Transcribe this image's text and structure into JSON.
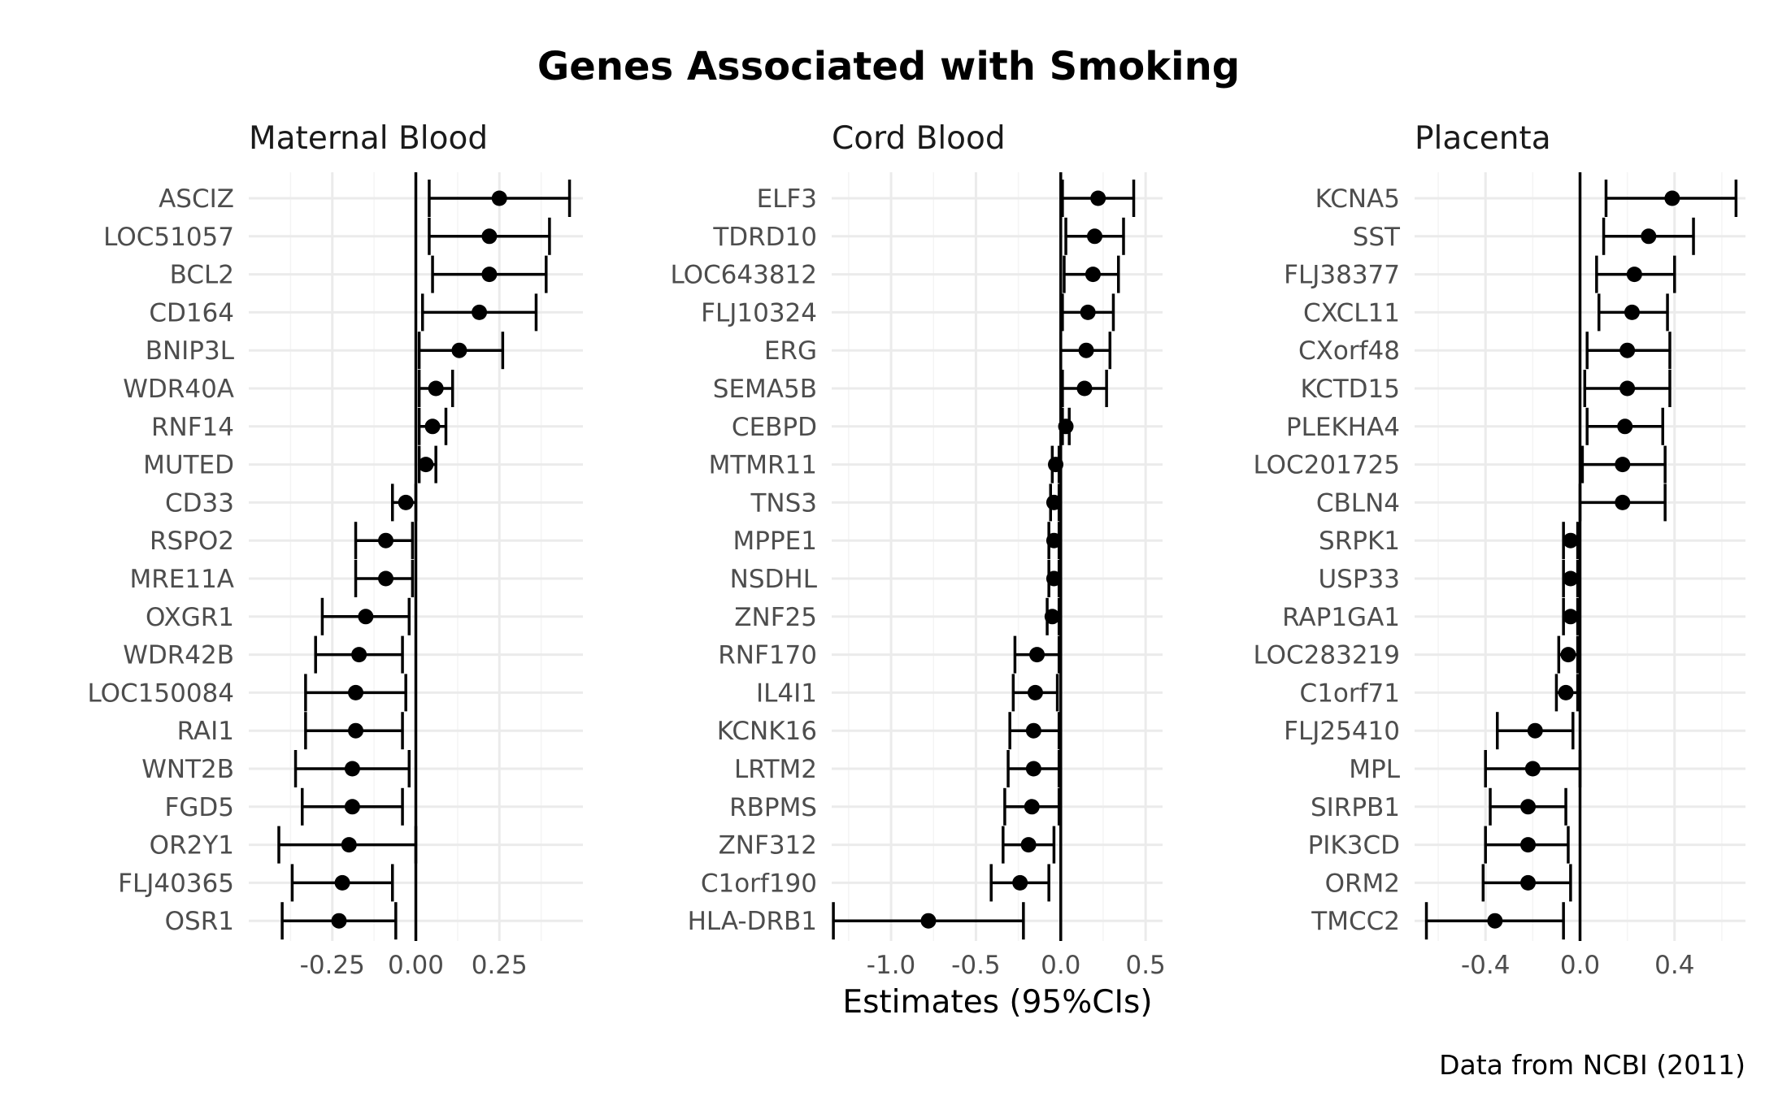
{
  "chart_data": {
    "type": "scatter",
    "title": "Genes Associated with Smoking",
    "xlabel": "Estimates (95%CIs)",
    "caption": "Data from NCBI (2011)",
    "grid": true,
    "reference_line_x": 0,
    "panels": [
      {
        "name": "Maternal Blood",
        "xlim": [
          -0.5,
          0.5
        ],
        "xticks": [
          -0.25,
          0.0,
          0.25
        ],
        "xtick_labels": [
          "-0.25",
          "0.00",
          "0.25"
        ],
        "rows": [
          {
            "gene": "ASCIZ",
            "estimate": 0.25,
            "lower": 0.04,
            "upper": 0.46
          },
          {
            "gene": "LOC51057",
            "estimate": 0.22,
            "lower": 0.04,
            "upper": 0.4
          },
          {
            "gene": "BCL2",
            "estimate": 0.22,
            "lower": 0.05,
            "upper": 0.39
          },
          {
            "gene": "CD164",
            "estimate": 0.19,
            "lower": 0.02,
            "upper": 0.36
          },
          {
            "gene": "BNIP3L",
            "estimate": 0.13,
            "lower": 0.01,
            "upper": 0.26
          },
          {
            "gene": "WDR40A",
            "estimate": 0.06,
            "lower": 0.01,
            "upper": 0.11
          },
          {
            "gene": "RNF14",
            "estimate": 0.05,
            "lower": 0.01,
            "upper": 0.09
          },
          {
            "gene": "MUTED",
            "estimate": 0.03,
            "lower": 0.01,
            "upper": 0.06
          },
          {
            "gene": "CD33",
            "estimate": -0.03,
            "lower": -0.07,
            "upper": 0.0
          },
          {
            "gene": "RSPO2",
            "estimate": -0.09,
            "lower": -0.18,
            "upper": -0.01
          },
          {
            "gene": "MRE11A",
            "estimate": -0.09,
            "lower": -0.18,
            "upper": -0.01
          },
          {
            "gene": "OXGR1",
            "estimate": -0.15,
            "lower": -0.28,
            "upper": -0.02
          },
          {
            "gene": "WDR42B",
            "estimate": -0.17,
            "lower": -0.3,
            "upper": -0.04
          },
          {
            "gene": "LOC150084",
            "estimate": -0.18,
            "lower": -0.33,
            "upper": -0.03
          },
          {
            "gene": "RAI1",
            "estimate": -0.18,
            "lower": -0.33,
            "upper": -0.04
          },
          {
            "gene": "WNT2B",
            "estimate": -0.19,
            "lower": -0.36,
            "upper": -0.02
          },
          {
            "gene": "FGD5",
            "estimate": -0.19,
            "lower": -0.34,
            "upper": -0.04
          },
          {
            "gene": "OR2Y1",
            "estimate": -0.2,
            "lower": -0.41,
            "upper": 0.0
          },
          {
            "gene": "FLJ40365",
            "estimate": -0.22,
            "lower": -0.37,
            "upper": -0.07
          },
          {
            "gene": "OSR1",
            "estimate": -0.23,
            "lower": -0.4,
            "upper": -0.06
          }
        ]
      },
      {
        "name": "Cord Blood",
        "xlim": [
          -1.35,
          0.6
        ],
        "xticks": [
          -1.0,
          -0.5,
          0.0,
          0.5
        ],
        "xtick_labels": [
          "-1.0",
          "-0.5",
          "0.0",
          "0.5"
        ],
        "rows": [
          {
            "gene": "ELF3",
            "estimate": 0.22,
            "lower": 0.01,
            "upper": 0.43
          },
          {
            "gene": "TDRD10",
            "estimate": 0.2,
            "lower": 0.03,
            "upper": 0.37
          },
          {
            "gene": "LOC643812",
            "estimate": 0.19,
            "lower": 0.02,
            "upper": 0.34
          },
          {
            "gene": "FLJ10324",
            "estimate": 0.16,
            "lower": 0.01,
            "upper": 0.31
          },
          {
            "gene": "ERG",
            "estimate": 0.15,
            "lower": 0.0,
            "upper": 0.29
          },
          {
            "gene": "SEMA5B",
            "estimate": 0.14,
            "lower": 0.01,
            "upper": 0.27
          },
          {
            "gene": "CEBPD",
            "estimate": 0.03,
            "lower": 0.01,
            "upper": 0.05
          },
          {
            "gene": "MTMR11",
            "estimate": -0.03,
            "lower": -0.05,
            "upper": -0.01
          },
          {
            "gene": "TNS3",
            "estimate": -0.04,
            "lower": -0.06,
            "upper": -0.01
          },
          {
            "gene": "MPPE1",
            "estimate": -0.04,
            "lower": -0.07,
            "upper": -0.01
          },
          {
            "gene": "NSDHL",
            "estimate": -0.04,
            "lower": -0.07,
            "upper": -0.01
          },
          {
            "gene": "ZNF25",
            "estimate": -0.05,
            "lower": -0.08,
            "upper": -0.01
          },
          {
            "gene": "RNF170",
            "estimate": -0.14,
            "lower": -0.27,
            "upper": -0.01
          },
          {
            "gene": "IL4I1",
            "estimate": -0.15,
            "lower": -0.28,
            "upper": -0.02
          },
          {
            "gene": "KCNK16",
            "estimate": -0.16,
            "lower": -0.3,
            "upper": -0.01
          },
          {
            "gene": "LRTM2",
            "estimate": -0.16,
            "lower": -0.31,
            "upper": -0.01
          },
          {
            "gene": "RBPMS",
            "estimate": -0.17,
            "lower": -0.33,
            "upper": -0.01
          },
          {
            "gene": "ZNF312",
            "estimate": -0.19,
            "lower": -0.34,
            "upper": -0.04
          },
          {
            "gene": "C1orf190",
            "estimate": -0.24,
            "lower": -0.41,
            "upper": -0.07
          },
          {
            "gene": "HLA-DRB1",
            "estimate": -0.78,
            "lower": -1.34,
            "upper": -0.22
          }
        ]
      },
      {
        "name": "Placenta",
        "xlim": [
          -0.7,
          0.7
        ],
        "xticks": [
          -0.4,
          0.0,
          0.4
        ],
        "xtick_labels": [
          "-0.4",
          "0.0",
          "0.4"
        ],
        "rows": [
          {
            "gene": "KCNA5",
            "estimate": 0.39,
            "lower": 0.11,
            "upper": 0.66
          },
          {
            "gene": "SST",
            "estimate": 0.29,
            "lower": 0.1,
            "upper": 0.48
          },
          {
            "gene": "FLJ38377",
            "estimate": 0.23,
            "lower": 0.07,
            "upper": 0.4
          },
          {
            "gene": "CXCL11",
            "estimate": 0.22,
            "lower": 0.08,
            "upper": 0.37
          },
          {
            "gene": "CXorf48",
            "estimate": 0.2,
            "lower": 0.03,
            "upper": 0.38
          },
          {
            "gene": "KCTD15",
            "estimate": 0.2,
            "lower": 0.02,
            "upper": 0.38
          },
          {
            "gene": "PLEKHA4",
            "estimate": 0.19,
            "lower": 0.03,
            "upper": 0.35
          },
          {
            "gene": "LOC201725",
            "estimate": 0.18,
            "lower": 0.01,
            "upper": 0.36
          },
          {
            "gene": "CBLN4",
            "estimate": 0.18,
            "lower": 0.0,
            "upper": 0.36
          },
          {
            "gene": "SRPK1",
            "estimate": -0.04,
            "lower": -0.07,
            "upper": -0.01
          },
          {
            "gene": "USP33",
            "estimate": -0.04,
            "lower": -0.07,
            "upper": -0.01
          },
          {
            "gene": "RAP1GA1",
            "estimate": -0.04,
            "lower": -0.07,
            "upper": -0.01
          },
          {
            "gene": "LOC283219",
            "estimate": -0.05,
            "lower": -0.09,
            "upper": -0.01
          },
          {
            "gene": "C1orf71",
            "estimate": -0.06,
            "lower": -0.1,
            "upper": -0.01
          },
          {
            "gene": "FLJ25410",
            "estimate": -0.19,
            "lower": -0.35,
            "upper": -0.03
          },
          {
            "gene": "MPL",
            "estimate": -0.2,
            "lower": -0.4,
            "upper": 0.0
          },
          {
            "gene": "SIRPB1",
            "estimate": -0.22,
            "lower": -0.38,
            "upper": -0.06
          },
          {
            "gene": "PIK3CD",
            "estimate": -0.22,
            "lower": -0.4,
            "upper": -0.05
          },
          {
            "gene": "ORM2",
            "estimate": -0.22,
            "lower": -0.41,
            "upper": -0.04
          },
          {
            "gene": "TMCC2",
            "estimate": -0.36,
            "lower": -0.65,
            "upper": -0.07
          }
        ]
      }
    ]
  }
}
